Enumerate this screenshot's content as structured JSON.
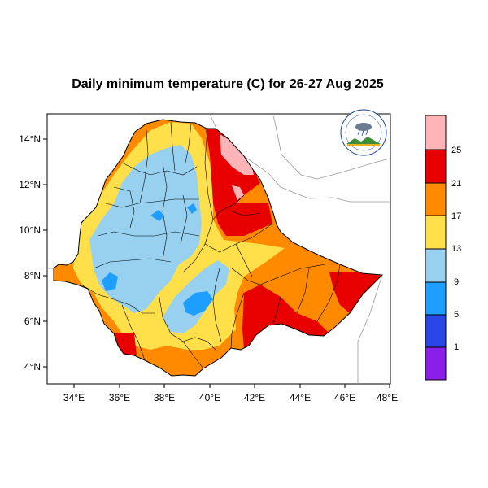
{
  "title": "Daily minimum temperature (C) for 26-27 Aug 2025",
  "colors": {
    "purple": "#8c1eea",
    "blue_dark": "#2a46e6",
    "blue": "#1e9eff",
    "blue_light": "#98d1f0",
    "yellow": "#ffe04a",
    "orange": "#ff8a00",
    "red": "#e80000",
    "pink": "#ffb4b8",
    "border": "#000000",
    "neighbor": "#9a9a9a"
  },
  "map": {
    "lon_range": [
      32.8,
      48.2
    ],
    "lat_range": [
      3.2,
      15.0
    ],
    "x_ticks": [
      "34°E",
      "36°E",
      "38°E",
      "40°E",
      "42°E",
      "44°E",
      "46°E",
      "48°E"
    ],
    "y_ticks": [
      "4°N",
      "6°N",
      "8°N",
      "10°N",
      "12°N",
      "14°N"
    ]
  },
  "colorbar": {
    "labels": [
      "1",
      "5",
      "9",
      "13",
      "17",
      "21",
      "25"
    ]
  },
  "logo": {
    "icon": "meteorology-institute-logo"
  }
}
